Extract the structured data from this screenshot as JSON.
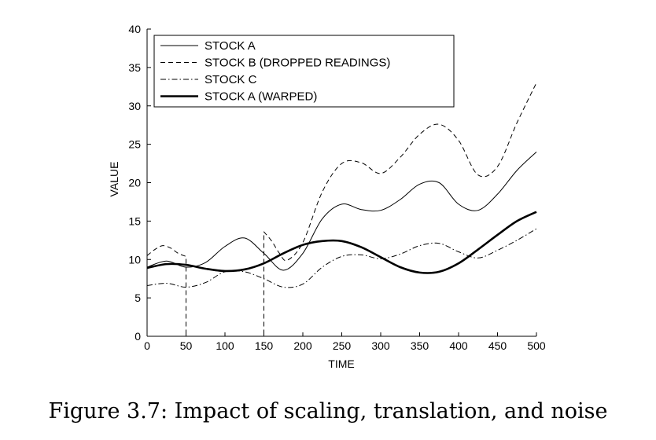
{
  "caption": "Figure 3.7: Impact of scaling, translation, and noise",
  "chart_data": {
    "type": "line",
    "title": "",
    "xlabel": "TIME",
    "ylabel": "VALUE",
    "xlim": [
      0,
      500
    ],
    "ylim": [
      0,
      40
    ],
    "xticks": [
      0,
      50,
      100,
      150,
      200,
      250,
      300,
      350,
      400,
      450,
      500
    ],
    "yticks": [
      0,
      5,
      10,
      15,
      20,
      25,
      30,
      35,
      40
    ],
    "grid": false,
    "legend_position": "top-left",
    "x": [
      0,
      25,
      50,
      75,
      100,
      125,
      150,
      175,
      200,
      225,
      250,
      275,
      300,
      325,
      350,
      375,
      400,
      425,
      450,
      475,
      500
    ],
    "series": [
      {
        "name": "STOCK A",
        "style": "solid-thin",
        "values": [
          9.0,
          9.8,
          9.0,
          9.6,
          11.7,
          12.8,
          10.8,
          8.6,
          10.8,
          15.3,
          17.2,
          16.5,
          16.4,
          17.8,
          19.8,
          20.0,
          17.2,
          16.4,
          18.5,
          21.6,
          24.0
        ]
      },
      {
        "name": "STOCK B (DROPPED READINGS)",
        "style": "dashed",
        "x": [
          0,
          10,
          20,
          30,
          40,
          50,
          50,
          150,
          150,
          160,
          170,
          180,
          200,
          225,
          250,
          275,
          300,
          325,
          350,
          375,
          400,
          425,
          450,
          475,
          500
        ],
        "values": [
          10.5,
          11.3,
          11.8,
          11.5,
          10.8,
          10.4,
          0,
          0,
          13.6,
          12.4,
          10.8,
          9.9,
          12.2,
          18.8,
          22.5,
          22.6,
          21.2,
          23.3,
          26.3,
          27.6,
          25.5,
          21.0,
          22.1,
          27.8,
          33.0
        ]
      },
      {
        "name": "STOCK C",
        "style": "dash-dot",
        "values": [
          6.6,
          6.9,
          6.4,
          7.0,
          8.4,
          8.4,
          7.5,
          6.4,
          6.8,
          9.0,
          10.4,
          10.6,
          10.1,
          10.7,
          11.8,
          12.1,
          11.0,
          10.2,
          11.2,
          12.5,
          14.0
        ]
      },
      {
        "name": "STOCK A (WARPED)",
        "style": "solid-thick",
        "values": [
          8.9,
          9.4,
          9.3,
          8.8,
          8.5,
          8.7,
          9.5,
          10.8,
          11.9,
          12.4,
          12.4,
          11.6,
          10.3,
          9.0,
          8.3,
          8.4,
          9.5,
          11.3,
          13.2,
          15.0,
          16.2
        ]
      }
    ]
  }
}
